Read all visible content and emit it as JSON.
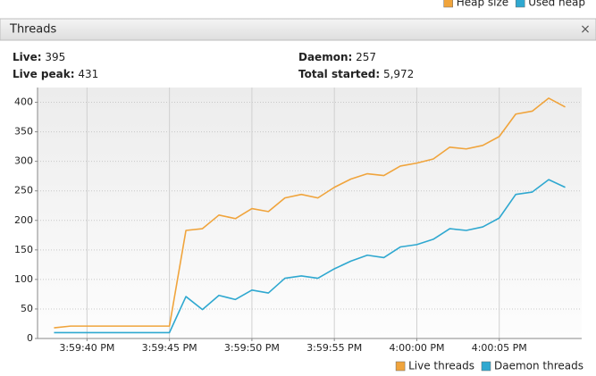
{
  "top_legend": [
    {
      "name": "Heap size",
      "color": "#f0a43c"
    },
    {
      "name": "Used heap",
      "color": "#2fa8d0"
    }
  ],
  "panel": {
    "title": "Threads",
    "close": "×"
  },
  "stats": [
    {
      "label": "Live:",
      "value": "395"
    },
    {
      "label": "Live peak:",
      "value": "431"
    },
    {
      "label": "Daemon:",
      "value": "257"
    },
    {
      "label": "Total started:",
      "value": "5,972"
    }
  ],
  "chart_data": {
    "type": "line",
    "x": [
      "3:59:38 PM",
      "3:59:39 PM",
      "3:59:40 PM",
      "3:59:41 PM",
      "3:59:42 PM",
      "3:59:43 PM",
      "3:59:44 PM",
      "3:59:45 PM",
      "3:59:46 PM",
      "3:59:47 PM",
      "3:59:48 PM",
      "3:59:49 PM",
      "3:59:50 PM",
      "3:59:51 PM",
      "3:59:52 PM",
      "3:59:53 PM",
      "3:59:54 PM",
      "3:59:55 PM",
      "3:59:56 PM",
      "3:59:57 PM",
      "3:59:58 PM",
      "3:59:59 PM",
      "4:00:00 PM",
      "4:00:01 PM",
      "4:00:02 PM",
      "4:00:03 PM",
      "4:00:04 PM",
      "4:00:05 PM",
      "4:00:06 PM",
      "4:00:07 PM",
      "4:00:08 PM",
      "4:00:09 PM"
    ],
    "series": [
      {
        "name": "Live threads",
        "color": "#f0a43c",
        "values": [
          18,
          21,
          21,
          21,
          21,
          21,
          21,
          21,
          183,
          186,
          209,
          203,
          220,
          215,
          238,
          244,
          238,
          256,
          270,
          279,
          276,
          292,
          297,
          304,
          324,
          321,
          327,
          342,
          380,
          385,
          407,
          392
        ]
      },
      {
        "name": "Daemon threads",
        "color": "#2fa8d0",
        "values": [
          10,
          10,
          10,
          10,
          10,
          10,
          10,
          10,
          71,
          49,
          73,
          66,
          82,
          77,
          102,
          106,
          102,
          118,
          131,
          141,
          137,
          155,
          159,
          168,
          186,
          183,
          189,
          204,
          244,
          248,
          269,
          256
        ]
      }
    ],
    "xlim": [
      "3:59:37 PM",
      "4:00:10 PM"
    ],
    "xticks": [
      "3:59:40 PM",
      "3:59:45 PM",
      "3:59:50 PM",
      "3:59:55 PM",
      "4:00:00 PM",
      "4:00:05 PM"
    ],
    "ylim": [
      0,
      425
    ],
    "yticks": [
      0,
      50,
      100,
      150,
      200,
      250,
      300,
      350,
      400
    ],
    "grid": true,
    "legend": "bottom-right"
  }
}
